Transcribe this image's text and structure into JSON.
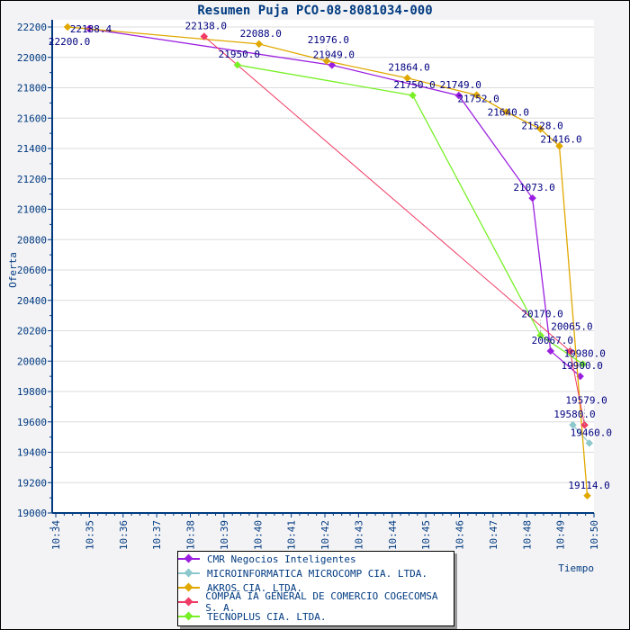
{
  "chart_data": {
    "type": "line",
    "title": "Resumen Puja PCO-08-8081034-000",
    "xlabel": "Tiempo",
    "ylabel": "Oferta",
    "ylim": [
      19000,
      22200
    ],
    "yticks": [
      19000,
      19200,
      19400,
      19600,
      19800,
      20000,
      20200,
      20400,
      20600,
      20800,
      21000,
      21200,
      21400,
      21600,
      21800,
      22000,
      22200
    ],
    "xlim_minutes": [
      34,
      50
    ],
    "xticks": [
      "10:34",
      "10:35",
      "10:36",
      "10:37",
      "10:38",
      "10:39",
      "10:40",
      "10:41",
      "10:42",
      "10:43",
      "10:44",
      "10:45",
      "10:46",
      "10:47",
      "10:48",
      "10:49",
      "10:50"
    ],
    "grid": true,
    "legend_position": "bottom-center",
    "series": [
      {
        "name": "CMR Negocios Inteligentes",
        "color": "#9b1fe0",
        "points": [
          [
            34.99,
            22188.4
          ],
          [
            42.21,
            21949
          ],
          [
            45.98,
            21749
          ],
          [
            48.17,
            21073
          ],
          [
            48.71,
            20067
          ],
          [
            49.59,
            19900
          ]
        ],
        "labels": [
          "22188.4",
          "21949.0",
          "21749.0",
          "21073.0",
          "20067.0",
          "19900.0"
        ]
      },
      {
        "name": "MICROINFORMATICA MICROCOMP CIA. LTDA.",
        "color": "#8cc8cc",
        "points": [
          [
            49.37,
            19580
          ],
          [
            49.86,
            19460
          ]
        ],
        "labels": [
          "19580.0",
          "19460.0"
        ]
      },
      {
        "name": "AKROS CIA. LTDA.",
        "color": "#e0a800",
        "points": [
          [
            34.35,
            22200
          ],
          [
            40.04,
            22088
          ],
          [
            42.05,
            21976
          ],
          [
            44.45,
            21864
          ],
          [
            46.51,
            21752
          ],
          [
            47.4,
            21640
          ],
          [
            48.41,
            21528
          ],
          [
            48.97,
            21416
          ],
          [
            49.8,
            19114
          ]
        ],
        "labels": [
          "22200.0",
          "22088.0",
          "21976.0",
          "21864.0",
          "21752.0",
          "21640.0",
          "21528.0",
          "21416.0",
          "19114.0"
        ]
      },
      {
        "name": "COMPAÃ IA GENERAL DE COMERCIO COGECOMSA S. A.",
        "color": "#f03c64",
        "points": [
          [
            38.41,
            22138
          ],
          [
            49.29,
            20065
          ],
          [
            49.72,
            19579
          ]
        ],
        "labels": [
          "22138.0",
          "20065.0",
          "19579.0"
        ]
      },
      {
        "name": "TECNOPLUS CIA. LTDA.",
        "color": "#78f028",
        "points": [
          [
            39.4,
            21950
          ],
          [
            44.61,
            21750
          ],
          [
            48.41,
            20170
          ],
          [
            49.67,
            19980
          ]
        ],
        "labels": [
          "21950.0",
          "21750.0",
          "20170.0",
          "19980.0"
        ]
      }
    ]
  }
}
